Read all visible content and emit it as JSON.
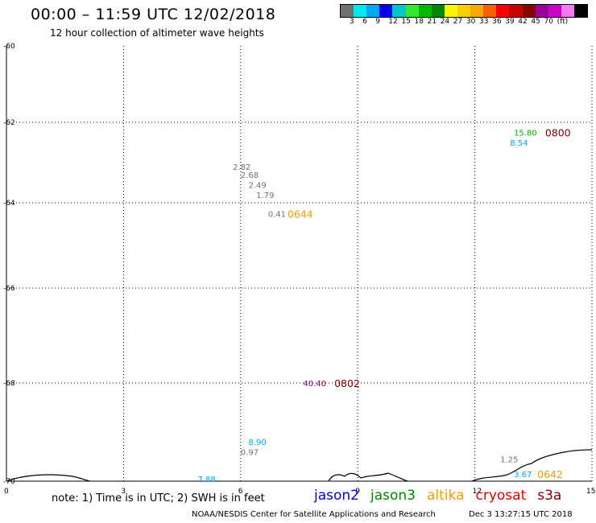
{
  "header": {
    "title": "00:00 – 11:59 UTC 12/02/2018",
    "subtitle": "12 hour collection of altimeter wave heights"
  },
  "colorbar": {
    "colors": [
      "#707070",
      "#00e8f0",
      "#00a8f8",
      "#0000e8",
      "#00c8c8",
      "#30e830",
      "#00b800",
      "#008800",
      "#f8f800",
      "#f8d000",
      "#f8a800",
      "#f86000",
      "#f80000",
      "#c80000",
      "#880000",
      "#980098",
      "#c800c8",
      "#f878f8",
      "#000000"
    ],
    "labels": [
      "3",
      "6",
      "9",
      "12",
      "15",
      "18",
      "21",
      "24",
      "27",
      "30",
      "33",
      "36",
      "39",
      "42",
      "45",
      "70",
      "(ft)"
    ]
  },
  "axes": {
    "x_ticks": [
      "0",
      "3",
      "6",
      "9",
      "12",
      "15"
    ],
    "y_ticks": [
      "-60",
      "-62",
      "-64",
      "-66",
      "-68",
      "-70"
    ]
  },
  "observations": [
    {
      "text": "2.82",
      "color": "#707070",
      "lon": 5.8,
      "lat": -63.1
    },
    {
      "text": "2.68",
      "color": "#707070",
      "lon": 6.0,
      "lat": -63.3
    },
    {
      "text": "2.49",
      "color": "#707070",
      "lon": 6.2,
      "lat": -63.55
    },
    {
      "text": "1.79",
      "color": "#707070",
      "lon": 6.4,
      "lat": -63.8
    },
    {
      "text": "0.41",
      "color": "#707070",
      "lon": 6.7,
      "lat": -64.25
    },
    {
      "text": "15.80",
      "color": "#00b800",
      "lon": 13.0,
      "lat": -62.25
    },
    {
      "text": "8.54",
      "color": "#00a8f8",
      "lon": 12.9,
      "lat": -62.5
    },
    {
      "text": "40.40",
      "color": "#880088",
      "lon": 7.6,
      "lat": -68.0
    },
    {
      "text": "8.90",
      "color": "#00a8f8",
      "lon": 6.2,
      "lat": -69.2
    },
    {
      "text": "0.97",
      "color": "#707070",
      "lon": 6.0,
      "lat": -69.4
    },
    {
      "text": "7.88",
      "color": "#00a8f8",
      "lon": 4.9,
      "lat": -69.95
    },
    {
      "text": "1.25",
      "color": "#707070",
      "lon": 12.65,
      "lat": -69.55
    },
    {
      "text": "3.67",
      "color": "#00a8f8",
      "lon": 13.0,
      "lat": -69.85
    }
  ],
  "times": [
    {
      "text": "0800",
      "color": "#800000",
      "lon": 13.8,
      "lat": -62.25
    },
    {
      "text": "0644",
      "color": "#f0a000",
      "lon": 7.2,
      "lat": -64.25
    },
    {
      "text": "0802",
      "color": "#800000",
      "lon": 8.4,
      "lat": -68.0
    },
    {
      "text": "0642",
      "color": "#f0a000",
      "lon": 13.6,
      "lat": -69.85
    }
  ],
  "footer": {
    "note": "note: 1) Time is in UTC; 2) SWH is in feet",
    "satellites": [
      {
        "name": "jason2",
        "color": "#0000e0"
      },
      {
        "name": "jason3",
        "color": "#008800"
      },
      {
        "name": "altika",
        "color": "#f0a000"
      },
      {
        "name": "cryosat",
        "color": "#e00000"
      },
      {
        "name": "s3a",
        "color": "#800000"
      }
    ],
    "credit": "NOAA/NESDIS Center for Satellite Applications and Research",
    "timestamp": "Dec  3 13:27:15 UTC 2018"
  }
}
